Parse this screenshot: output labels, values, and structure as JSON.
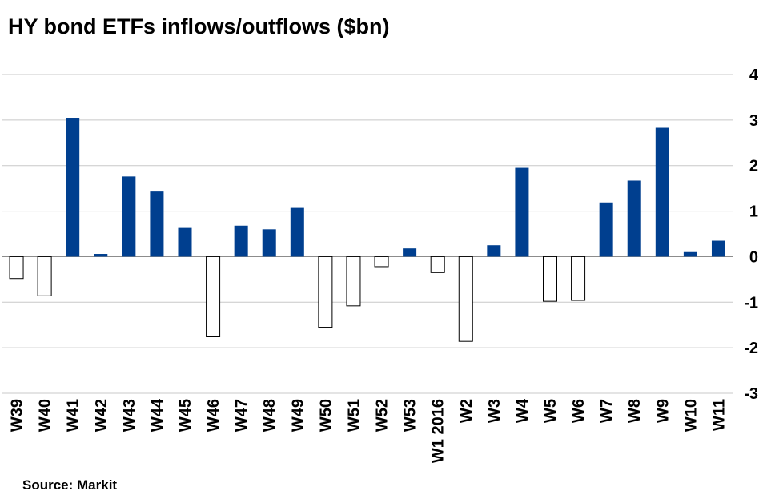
{
  "source": "Source: Markit",
  "colors": {
    "positive": "#003f8f",
    "negative_fill": "#ffffff",
    "negative_stroke": "#000000",
    "grid": "#c8c8c8"
  },
  "chart_data": {
    "type": "bar",
    "title": "HY bond ETFs inflows/outflows ($bn)",
    "xlabel": "",
    "ylabel": "",
    "ylim": [
      -3,
      4
    ],
    "yticks": [
      4,
      3,
      2,
      1,
      0,
      -1,
      -2,
      -3
    ],
    "grid": true,
    "legend": "none",
    "categories": [
      "W39",
      "W40",
      "W41",
      "W42",
      "W43",
      "W44",
      "W45",
      "W46",
      "W47",
      "W48",
      "W49",
      "W50",
      "W51",
      "W52",
      "W53",
      "W1 2016",
      "W2",
      "W3",
      "W4",
      "W5",
      "W6",
      "W7",
      "W8",
      "W9",
      "W10",
      "W11"
    ],
    "values": [
      -0.48,
      -0.86,
      3.05,
      0.06,
      1.76,
      1.43,
      0.63,
      -1.76,
      0.68,
      0.6,
      1.07,
      -1.55,
      -1.08,
      -0.22,
      0.18,
      -0.35,
      -1.86,
      0.25,
      1.95,
      -0.98,
      -0.96,
      1.19,
      1.67,
      2.83,
      0.1,
      0.35
    ]
  }
}
